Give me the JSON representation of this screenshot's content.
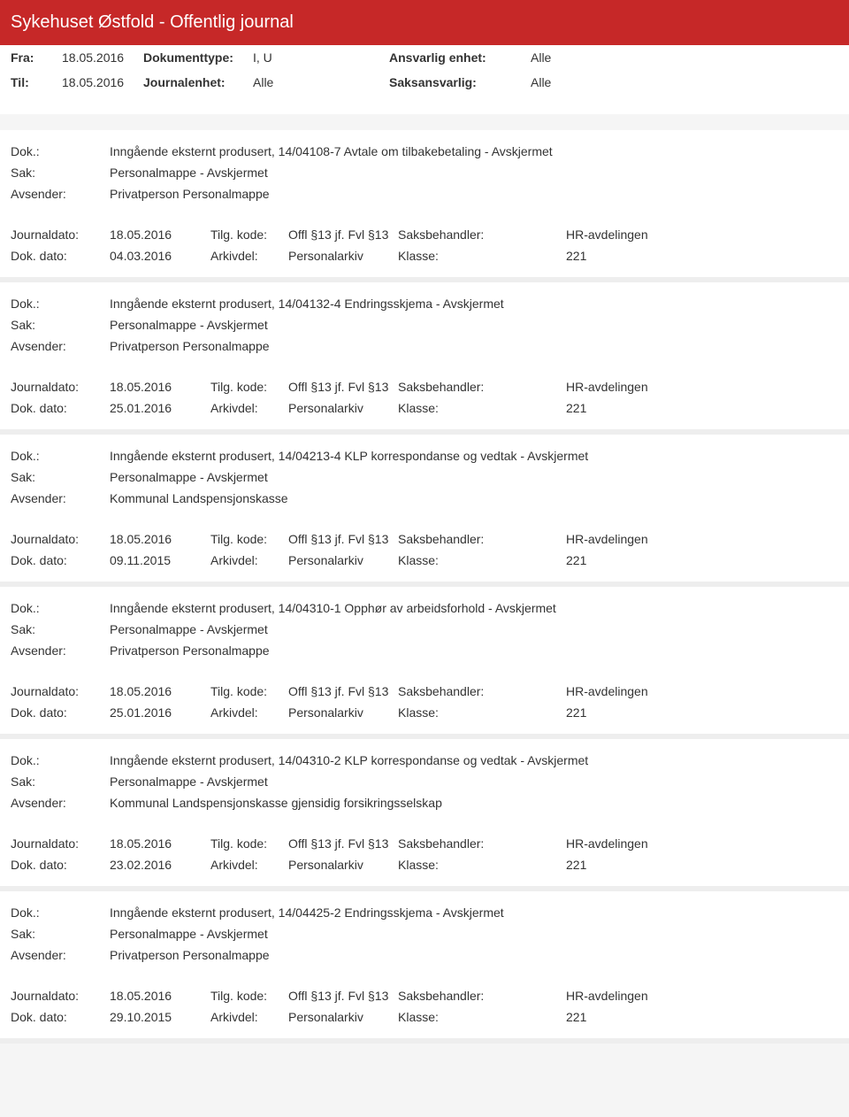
{
  "colors": {
    "header_bg": "#c62828",
    "header_text": "#ffffff",
    "body_bg": "#f5f5f5",
    "text": "#333333",
    "divider": "#eeeeee"
  },
  "header": {
    "title": "Sykehuset Østfold - Offentlig journal"
  },
  "meta": {
    "fra_label": "Fra:",
    "fra_value": "18.05.2016",
    "doktype_label": "Dokumenttype:",
    "doktype_value": "I, U",
    "ansvarlig_label": "Ansvarlig enhet:",
    "ansvarlig_value": "Alle",
    "til_label": "Til:",
    "til_value": "18.05.2016",
    "journalenhet_label": "Journalenhet:",
    "journalenhet_value": "Alle",
    "saksansvarlig_label": "Saksansvarlig:",
    "saksansvarlig_value": "Alle"
  },
  "labels": {
    "dok": "Dok.:",
    "sak": "Sak:",
    "avsender": "Avsender:",
    "journaldato": "Journaldato:",
    "tilgkode": "Tilg. kode:",
    "saksbehandler": "Saksbehandler:",
    "dokdato": "Dok. dato:",
    "arkivdel": "Arkivdel:",
    "klasse": "Klasse:"
  },
  "entries": [
    {
      "dok": "Inngående eksternt produsert, 14/04108-7 Avtale om tilbakebetaling - Avskjermet",
      "sak": "Personalmappe - Avskjermet",
      "avsender": "Privatperson Personalmappe",
      "journaldato": "18.05.2016",
      "tilgkode": "Offl §13 jf. Fvl §13",
      "saksbehandler": "HR-avdelingen",
      "dokdato": "04.03.2016",
      "arkivdel": "Personalarkiv",
      "klasse": "221"
    },
    {
      "dok": "Inngående eksternt produsert, 14/04132-4 Endringsskjema - Avskjermet",
      "sak": "Personalmappe - Avskjermet",
      "avsender": "Privatperson Personalmappe",
      "journaldato": "18.05.2016",
      "tilgkode": "Offl §13 jf. Fvl §13",
      "saksbehandler": "HR-avdelingen",
      "dokdato": "25.01.2016",
      "arkivdel": "Personalarkiv",
      "klasse": "221"
    },
    {
      "dok": "Inngående eksternt produsert, 14/04213-4 KLP korrespondanse og vedtak - Avskjermet",
      "sak": "Personalmappe - Avskjermet",
      "avsender": "Kommunal Landspensjonskasse",
      "journaldato": "18.05.2016",
      "tilgkode": "Offl §13 jf. Fvl §13",
      "saksbehandler": "HR-avdelingen",
      "dokdato": "09.11.2015",
      "arkivdel": "Personalarkiv",
      "klasse": "221"
    },
    {
      "dok": "Inngående eksternt produsert, 14/04310-1 Opphør av arbeidsforhold - Avskjermet",
      "sak": "Personalmappe - Avskjermet",
      "avsender": "Privatperson Personalmappe",
      "journaldato": "18.05.2016",
      "tilgkode": "Offl §13 jf. Fvl §13",
      "saksbehandler": "HR-avdelingen",
      "dokdato": "25.01.2016",
      "arkivdel": "Personalarkiv",
      "klasse": "221"
    },
    {
      "dok": "Inngående eksternt produsert, 14/04310-2 KLP korrespondanse og vedtak - Avskjermet",
      "sak": "Personalmappe - Avskjermet",
      "avsender": "Kommunal Landspensjonskasse gjensidig forsikringsselskap",
      "journaldato": "18.05.2016",
      "tilgkode": "Offl §13 jf. Fvl §13",
      "saksbehandler": "HR-avdelingen",
      "dokdato": "23.02.2016",
      "arkivdel": "Personalarkiv",
      "klasse": "221"
    },
    {
      "dok": "Inngående eksternt produsert, 14/04425-2 Endringsskjema - Avskjermet",
      "sak": "Personalmappe - Avskjermet",
      "avsender": "Privatperson Personalmappe",
      "journaldato": "18.05.2016",
      "tilgkode": "Offl §13 jf. Fvl §13",
      "saksbehandler": "HR-avdelingen",
      "dokdato": "29.10.2015",
      "arkivdel": "Personalarkiv",
      "klasse": "221"
    }
  ]
}
